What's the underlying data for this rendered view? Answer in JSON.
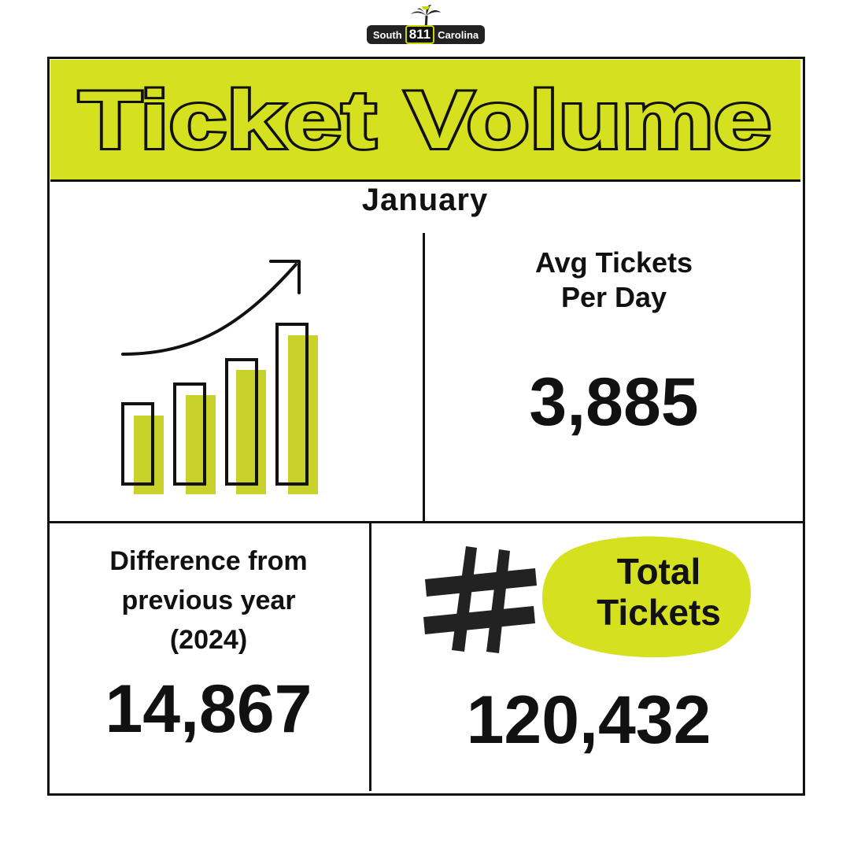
{
  "logo": {
    "left_text": "South",
    "number": "811",
    "right_text": "Carolina"
  },
  "title": "Ticket Volume",
  "month": "January",
  "avg_per_day": {
    "label_line1": "Avg Tickets",
    "label_line2": "Per Day",
    "value": "3,885"
  },
  "difference": {
    "label_line1": "Difference from",
    "label_line2": "previous year",
    "label_line3": "(2024)",
    "value": "14,867"
  },
  "total": {
    "label_line1": "Total",
    "label_line2": "Tickets",
    "value": "120,432"
  },
  "colors": {
    "accent": "#d5e01e",
    "ink": "#111111",
    "bar_fill": "#c8d22a"
  },
  "icons": {
    "growth_chart": "bar-chart-rising-arrow-icon",
    "hash": "hash-icon"
  }
}
